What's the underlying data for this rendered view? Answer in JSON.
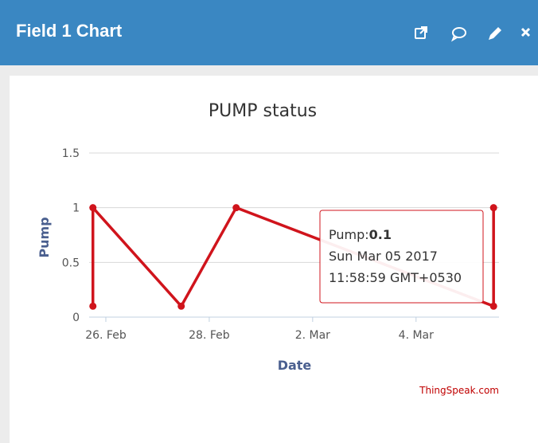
{
  "header": {
    "title": "Field 1 Chart"
  },
  "chart_data": {
    "type": "line",
    "title": "PUMP status",
    "x_label": "Date",
    "y_label": "Pump",
    "credits": "ThingSpeak.com",
    "x": [
      "2017-02-25T18:00:00",
      "2017-02-25T18:00:00",
      "2017-02-27T11:00:00",
      "2017-02-28T12:30:00",
      "2017-03-05T11:58:59",
      "2017-03-05T11:58:59"
    ],
    "series": [
      {
        "name": "Pump",
        "color": "#d0141c",
        "values": [
          0.1,
          1,
          0.1,
          1,
          0.1,
          1
        ]
      }
    ],
    "xlim": [
      "2017-02-25T16:15:00",
      "2017-03-05T14:30:00"
    ],
    "xticks": [
      {
        "value": "2017-02-26T00:00:00",
        "label": "26. Feb"
      },
      {
        "value": "2017-02-28T00:00:00",
        "label": "28. Feb"
      },
      {
        "value": "2017-03-02T00:00:00",
        "label": "2. Mar"
      },
      {
        "value": "2017-03-04T00:00:00",
        "label": "4. Mar"
      }
    ],
    "ylim": [
      0,
      1.5
    ],
    "yticks": [
      0,
      0.5,
      1,
      1.5
    ],
    "grid": true,
    "tooltip": {
      "label": "Pump:",
      "value": 0.1,
      "date": "Sun Mar 05 2017",
      "time": "11:58:59 GMT+0530"
    }
  }
}
